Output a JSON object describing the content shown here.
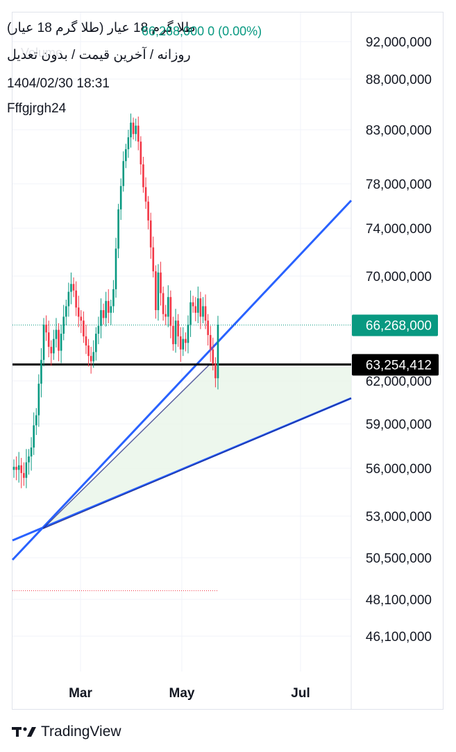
{
  "header": {
    "title": "طلا گرم 18 عیار (طلا گرم 18 عیار)",
    "price_change": "66,268,000  0 (0.00%)",
    "subtitle": "روزانه / آخرین قیمت / بدون تعدیل",
    "ghost_volume": "Volume",
    "datetime": "1404/02/30 18:31",
    "username": "Fffgjrgh24"
  },
  "footer": {
    "brand": "TradingView",
    "logo_icon": "tradingview-logo-icon"
  },
  "colors": {
    "up": "#089981",
    "down": "#f23645",
    "trendline": "#2962ff",
    "channel_fill": "#e8f5e9",
    "level": "#000000"
  },
  "chart_data": {
    "type": "candlestick",
    "title": "طلا گرم 18 عیار (طلا گرم 18 عیار)",
    "interval": "روزانه",
    "y_ticks": [
      92000000,
      88000000,
      83000000,
      78000000,
      74000000,
      70000000,
      62000000,
      59000000,
      56000000,
      53000000,
      50500000,
      48100000,
      46100000
    ],
    "y_tick_labels": [
      "92,000,000",
      "88,000,000",
      "83,000,000",
      "78,000,000",
      "74,000,000",
      "70,000,000",
      "62,000,000",
      "59,000,000",
      "56,000,000",
      "53,000,000",
      "50,500,000",
      "48,100,000",
      "46,100,000"
    ],
    "x_ticks": [
      "Mar",
      "May",
      "Jul"
    ],
    "last_price": 66268000,
    "last_price_label": "66,268,000",
    "horizontal_level": 63254412,
    "horizontal_level_label": "63,254,412",
    "low_marker": 48600000,
    "grid": true,
    "closes": [
      56100000,
      55900000,
      56200000,
      55700000,
      55400000,
      56400000,
      56800000,
      57400000,
      58900000,
      59600000,
      61800000,
      63600000,
      66300000,
      65700000,
      64600000,
      64100000,
      65200000,
      65900000,
      64300000,
      65600000,
      66900000,
      67700000,
      68800000,
      69400000,
      68900000,
      67600000,
      66900000,
      66600000,
      65400000,
      64700000,
      63900000,
      63500000,
      64200000,
      65600000,
      66200000,
      67400000,
      66800000,
      68100000,
      67200000,
      67700000,
      69000000,
      72300000,
      75700000,
      77800000,
      80100000,
      81200000,
      82300000,
      83700000,
      82600000,
      83400000,
      81900000,
      79800000,
      77700000,
      76400000,
      74700000,
      72400000,
      70400000,
      67400000,
      70300000,
      68700000,
      67100000,
      66900000,
      68400000,
      66200000,
      64800000,
      66600000,
      65400000,
      64400000,
      65200000,
      64900000,
      66300000,
      68000000,
      67700000,
      67200000,
      68300000,
      66900000,
      67700000,
      66600000,
      65500000,
      64400000,
      63300000,
      62200000,
      66268000
    ]
  }
}
